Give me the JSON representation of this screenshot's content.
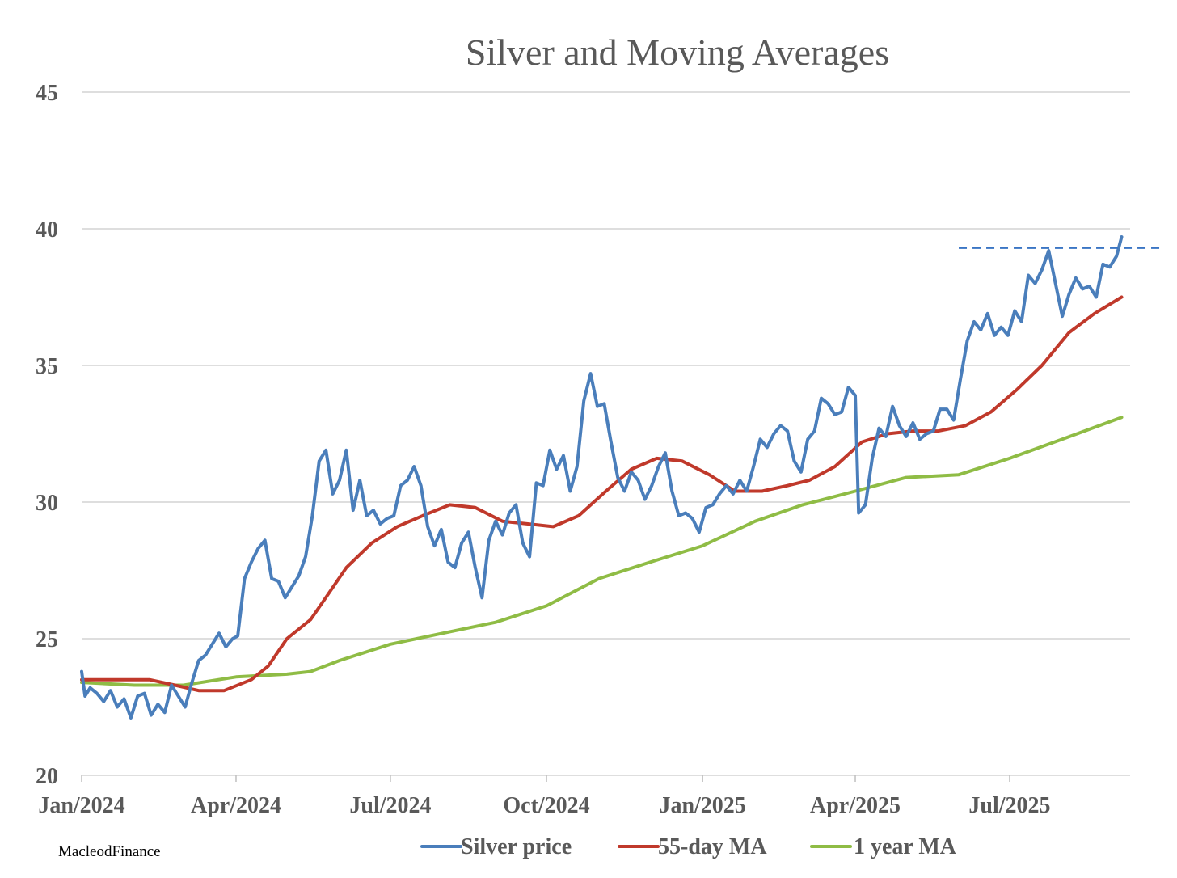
{
  "chart_data": {
    "type": "line",
    "title": "Silver and Moving Averages",
    "credit": "MacleodFinance",
    "xlabel": "",
    "ylabel": "",
    "ylim": [
      20,
      45
    ],
    "yticks": [
      20,
      25,
      30,
      35,
      40,
      45
    ],
    "xlim": [
      "2024-01-01",
      "2025-09-10"
    ],
    "xticks": [
      {
        "date": "2024-01-01",
        "label": "Jan/2024"
      },
      {
        "date": "2024-04-01",
        "label": "Apr/2024"
      },
      {
        "date": "2024-07-01",
        "label": "Jul/2024"
      },
      {
        "date": "2024-10-01",
        "label": "Oct/2024"
      },
      {
        "date": "2025-01-01",
        "label": "Jan/2025"
      },
      {
        "date": "2025-04-01",
        "label": "Apr/2025"
      },
      {
        "date": "2025-07-01",
        "label": "Jul/2025"
      }
    ],
    "grid": true,
    "legend": "bottom",
    "reference_line": {
      "style": "dashed",
      "color": "#3a75c4",
      "y": 39.3,
      "x_start": "2025-06-01",
      "x_end": "2025-09-30"
    },
    "series": [
      {
        "name": "Silver price",
        "color": "#4a7ebb",
        "points": [
          [
            "2024-01-01",
            23.8
          ],
          [
            "2024-01-03",
            22.9
          ],
          [
            "2024-01-06",
            23.2
          ],
          [
            "2024-01-10",
            23.0
          ],
          [
            "2024-01-14",
            22.7
          ],
          [
            "2024-01-18",
            23.1
          ],
          [
            "2024-01-22",
            22.5
          ],
          [
            "2024-01-26",
            22.8
          ],
          [
            "2024-01-30",
            22.1
          ],
          [
            "2024-02-03",
            22.9
          ],
          [
            "2024-02-07",
            23.0
          ],
          [
            "2024-02-11",
            22.2
          ],
          [
            "2024-02-15",
            22.6
          ],
          [
            "2024-02-19",
            22.3
          ],
          [
            "2024-02-23",
            23.3
          ],
          [
            "2024-02-27",
            22.9
          ],
          [
            "2024-03-02",
            22.5
          ],
          [
            "2024-03-06",
            23.4
          ],
          [
            "2024-03-10",
            24.2
          ],
          [
            "2024-03-14",
            24.4
          ],
          [
            "2024-03-18",
            24.8
          ],
          [
            "2024-03-22",
            25.2
          ],
          [
            "2024-03-26",
            24.7
          ],
          [
            "2024-03-30",
            25.0
          ],
          [
            "2024-04-02",
            25.1
          ],
          [
            "2024-04-06",
            27.2
          ],
          [
            "2024-04-10",
            27.8
          ],
          [
            "2024-04-14",
            28.3
          ],
          [
            "2024-04-18",
            28.6
          ],
          [
            "2024-04-22",
            27.2
          ],
          [
            "2024-04-26",
            27.1
          ],
          [
            "2024-04-30",
            26.5
          ],
          [
            "2024-05-04",
            26.9
          ],
          [
            "2024-05-08",
            27.3
          ],
          [
            "2024-05-12",
            28.0
          ],
          [
            "2024-05-16",
            29.5
          ],
          [
            "2024-05-20",
            31.5
          ],
          [
            "2024-05-24",
            31.9
          ],
          [
            "2024-05-28",
            30.3
          ],
          [
            "2024-06-01",
            30.8
          ],
          [
            "2024-06-05",
            31.9
          ],
          [
            "2024-06-09",
            29.7
          ],
          [
            "2024-06-13",
            30.8
          ],
          [
            "2024-06-17",
            29.5
          ],
          [
            "2024-06-21",
            29.7
          ],
          [
            "2024-06-25",
            29.2
          ],
          [
            "2024-06-29",
            29.4
          ],
          [
            "2024-07-03",
            29.5
          ],
          [
            "2024-07-07",
            30.6
          ],
          [
            "2024-07-11",
            30.8
          ],
          [
            "2024-07-15",
            31.3
          ],
          [
            "2024-07-19",
            30.6
          ],
          [
            "2024-07-23",
            29.1
          ],
          [
            "2024-07-27",
            28.4
          ],
          [
            "2024-07-31",
            29.0
          ],
          [
            "2024-08-04",
            27.8
          ],
          [
            "2024-08-08",
            27.6
          ],
          [
            "2024-08-12",
            28.5
          ],
          [
            "2024-08-16",
            28.9
          ],
          [
            "2024-08-20",
            27.6
          ],
          [
            "2024-08-24",
            26.5
          ],
          [
            "2024-08-28",
            28.6
          ],
          [
            "2024-09-01",
            29.3
          ],
          [
            "2024-09-05",
            28.8
          ],
          [
            "2024-09-09",
            29.6
          ],
          [
            "2024-09-13",
            29.9
          ],
          [
            "2024-09-17",
            28.5
          ],
          [
            "2024-09-21",
            28.0
          ],
          [
            "2024-09-25",
            30.7
          ],
          [
            "2024-09-29",
            30.6
          ],
          [
            "2024-10-03",
            31.9
          ],
          [
            "2024-10-07",
            31.2
          ],
          [
            "2024-10-11",
            31.7
          ],
          [
            "2024-10-15",
            30.4
          ],
          [
            "2024-10-19",
            31.3
          ],
          [
            "2024-10-23",
            33.7
          ],
          [
            "2024-10-27",
            34.7
          ],
          [
            "2024-10-31",
            33.5
          ],
          [
            "2024-11-04",
            33.6
          ],
          [
            "2024-11-08",
            32.2
          ],
          [
            "2024-11-12",
            30.9
          ],
          [
            "2024-11-16",
            30.4
          ],
          [
            "2024-11-20",
            31.1
          ],
          [
            "2024-11-24",
            30.8
          ],
          [
            "2024-11-28",
            30.1
          ],
          [
            "2024-12-02",
            30.6
          ],
          [
            "2024-12-06",
            31.3
          ],
          [
            "2024-12-10",
            31.8
          ],
          [
            "2024-12-14",
            30.4
          ],
          [
            "2024-12-18",
            29.5
          ],
          [
            "2024-12-22",
            29.6
          ],
          [
            "2024-12-26",
            29.4
          ],
          [
            "2024-12-30",
            28.9
          ],
          [
            "2025-01-03",
            29.8
          ],
          [
            "2025-01-07",
            29.9
          ],
          [
            "2025-01-11",
            30.3
          ],
          [
            "2025-01-15",
            30.6
          ],
          [
            "2025-01-19",
            30.3
          ],
          [
            "2025-01-23",
            30.8
          ],
          [
            "2025-01-27",
            30.4
          ],
          [
            "2025-01-31",
            31.3
          ],
          [
            "2025-02-04",
            32.3
          ],
          [
            "2025-02-08",
            32.0
          ],
          [
            "2025-02-12",
            32.5
          ],
          [
            "2025-02-16",
            32.8
          ],
          [
            "2025-02-20",
            32.6
          ],
          [
            "2025-02-24",
            31.5
          ],
          [
            "2025-02-28",
            31.1
          ],
          [
            "2025-03-04",
            32.3
          ],
          [
            "2025-03-08",
            32.6
          ],
          [
            "2025-03-12",
            33.8
          ],
          [
            "2025-03-16",
            33.6
          ],
          [
            "2025-03-20",
            33.2
          ],
          [
            "2025-03-24",
            33.3
          ],
          [
            "2025-03-28",
            34.2
          ],
          [
            "2025-04-01",
            33.9
          ],
          [
            "2025-04-03",
            29.6
          ],
          [
            "2025-04-07",
            29.9
          ],
          [
            "2025-04-11",
            31.6
          ],
          [
            "2025-04-15",
            32.7
          ],
          [
            "2025-04-19",
            32.4
          ],
          [
            "2025-04-23",
            33.5
          ],
          [
            "2025-04-27",
            32.8
          ],
          [
            "2025-05-01",
            32.4
          ],
          [
            "2025-05-05",
            32.9
          ],
          [
            "2025-05-09",
            32.3
          ],
          [
            "2025-05-13",
            32.5
          ],
          [
            "2025-05-17",
            32.6
          ],
          [
            "2025-05-21",
            33.4
          ],
          [
            "2025-05-25",
            33.4
          ],
          [
            "2025-05-29",
            33.0
          ],
          [
            "2025-06-02",
            34.5
          ],
          [
            "2025-06-06",
            35.9
          ],
          [
            "2025-06-10",
            36.6
          ],
          [
            "2025-06-14",
            36.3
          ],
          [
            "2025-06-18",
            36.9
          ],
          [
            "2025-06-22",
            36.1
          ],
          [
            "2025-06-26",
            36.4
          ],
          [
            "2025-06-30",
            36.1
          ],
          [
            "2025-07-04",
            37.0
          ],
          [
            "2025-07-08",
            36.6
          ],
          [
            "2025-07-12",
            38.3
          ],
          [
            "2025-07-16",
            38.0
          ],
          [
            "2025-07-20",
            38.5
          ],
          [
            "2025-07-24",
            39.2
          ],
          [
            "2025-07-28",
            38.0
          ],
          [
            "2025-08-01",
            36.8
          ],
          [
            "2025-08-05",
            37.6
          ],
          [
            "2025-08-09",
            38.2
          ],
          [
            "2025-08-13",
            37.8
          ],
          [
            "2025-08-17",
            37.9
          ],
          [
            "2025-08-21",
            37.5
          ],
          [
            "2025-08-25",
            38.7
          ],
          [
            "2025-08-29",
            38.6
          ],
          [
            "2025-09-02",
            39.0
          ],
          [
            "2025-09-05",
            39.7
          ]
        ]
      },
      {
        "name": "55-day MA",
        "color": "#c0392b",
        "points": [
          [
            "2024-01-01",
            23.5
          ],
          [
            "2024-01-20",
            23.5
          ],
          [
            "2024-02-10",
            23.5
          ],
          [
            "2024-02-25",
            23.3
          ],
          [
            "2024-03-10",
            23.1
          ],
          [
            "2024-03-25",
            23.1
          ],
          [
            "2024-04-10",
            23.5
          ],
          [
            "2024-04-20",
            24.0
          ],
          [
            "2024-05-01",
            25.0
          ],
          [
            "2024-05-15",
            25.7
          ],
          [
            "2024-05-25",
            26.6
          ],
          [
            "2024-06-05",
            27.6
          ],
          [
            "2024-06-20",
            28.5
          ],
          [
            "2024-07-05",
            29.1
          ],
          [
            "2024-07-20",
            29.5
          ],
          [
            "2024-08-05",
            29.9
          ],
          [
            "2024-08-20",
            29.8
          ],
          [
            "2024-09-05",
            29.3
          ],
          [
            "2024-09-20",
            29.2
          ],
          [
            "2024-10-05",
            29.1
          ],
          [
            "2024-10-20",
            29.5
          ],
          [
            "2024-11-05",
            30.4
          ],
          [
            "2024-11-20",
            31.2
          ],
          [
            "2024-12-05",
            31.6
          ],
          [
            "2024-12-20",
            31.5
          ],
          [
            "2025-01-05",
            31.0
          ],
          [
            "2025-01-20",
            30.4
          ],
          [
            "2025-02-05",
            30.4
          ],
          [
            "2025-02-20",
            30.6
          ],
          [
            "2025-03-05",
            30.8
          ],
          [
            "2025-03-20",
            31.3
          ],
          [
            "2025-04-05",
            32.2
          ],
          [
            "2025-04-20",
            32.5
          ],
          [
            "2025-05-05",
            32.6
          ],
          [
            "2025-05-20",
            32.6
          ],
          [
            "2025-06-05",
            32.8
          ],
          [
            "2025-06-20",
            33.3
          ],
          [
            "2025-07-05",
            34.1
          ],
          [
            "2025-07-20",
            35.0
          ],
          [
            "2025-08-05",
            36.2
          ],
          [
            "2025-08-20",
            36.9
          ],
          [
            "2025-09-05",
            37.5
          ]
        ]
      },
      {
        "name": "1 year MA",
        "color": "#8fbc45",
        "points": [
          [
            "2024-01-01",
            23.4
          ],
          [
            "2024-02-01",
            23.3
          ],
          [
            "2024-03-01",
            23.3
          ],
          [
            "2024-04-01",
            23.6
          ],
          [
            "2024-05-01",
            23.7
          ],
          [
            "2024-05-15",
            23.8
          ],
          [
            "2024-06-01",
            24.2
          ],
          [
            "2024-07-01",
            24.8
          ],
          [
            "2024-08-01",
            25.2
          ],
          [
            "2024-09-01",
            25.6
          ],
          [
            "2024-10-01",
            26.2
          ],
          [
            "2024-11-01",
            27.2
          ],
          [
            "2024-12-01",
            27.8
          ],
          [
            "2025-01-01",
            28.4
          ],
          [
            "2025-02-01",
            29.3
          ],
          [
            "2025-03-01",
            29.9
          ],
          [
            "2025-04-01",
            30.4
          ],
          [
            "2025-05-01",
            30.9
          ],
          [
            "2025-06-01",
            31.0
          ],
          [
            "2025-07-01",
            31.6
          ],
          [
            "2025-08-01",
            32.3
          ],
          [
            "2025-09-05",
            33.1
          ]
        ]
      }
    ]
  }
}
